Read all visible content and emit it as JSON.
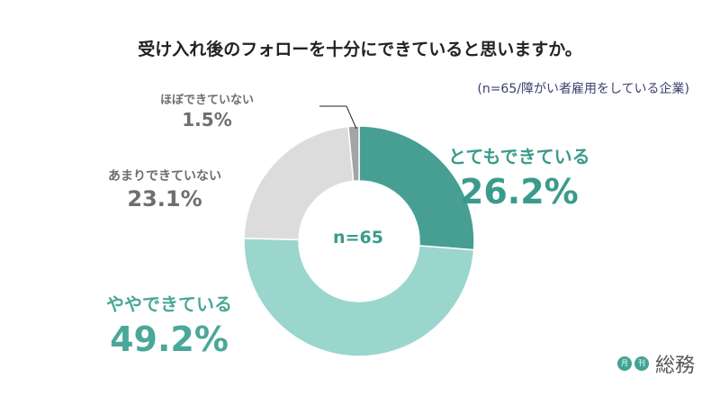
{
  "chart_data": {
    "type": "pie",
    "title": "受け入れ後のフォローを十分にできていると思いますか。",
    "subtitle": "(n=65/障がい者雇用をしている企業)",
    "center_label": "n=65",
    "slices": [
      {
        "label": "とてもできている",
        "value": 26.2,
        "value_text": "26.2%",
        "color": "#479f94"
      },
      {
        "label": "ややできている",
        "value": 49.2,
        "value_text": "49.2%",
        "color": "#9ad6cd"
      },
      {
        "label": "あまりできていない",
        "value": 23.1,
        "value_text": "23.1%",
        "color": "#dcdcdc"
      },
      {
        "label": "ほぼできていない",
        "value": 1.5,
        "value_text": "1.5%",
        "color": "#a4a4a4"
      }
    ]
  },
  "logo": {
    "badge1": "月",
    "badge2": "刊",
    "word": "総務"
  }
}
